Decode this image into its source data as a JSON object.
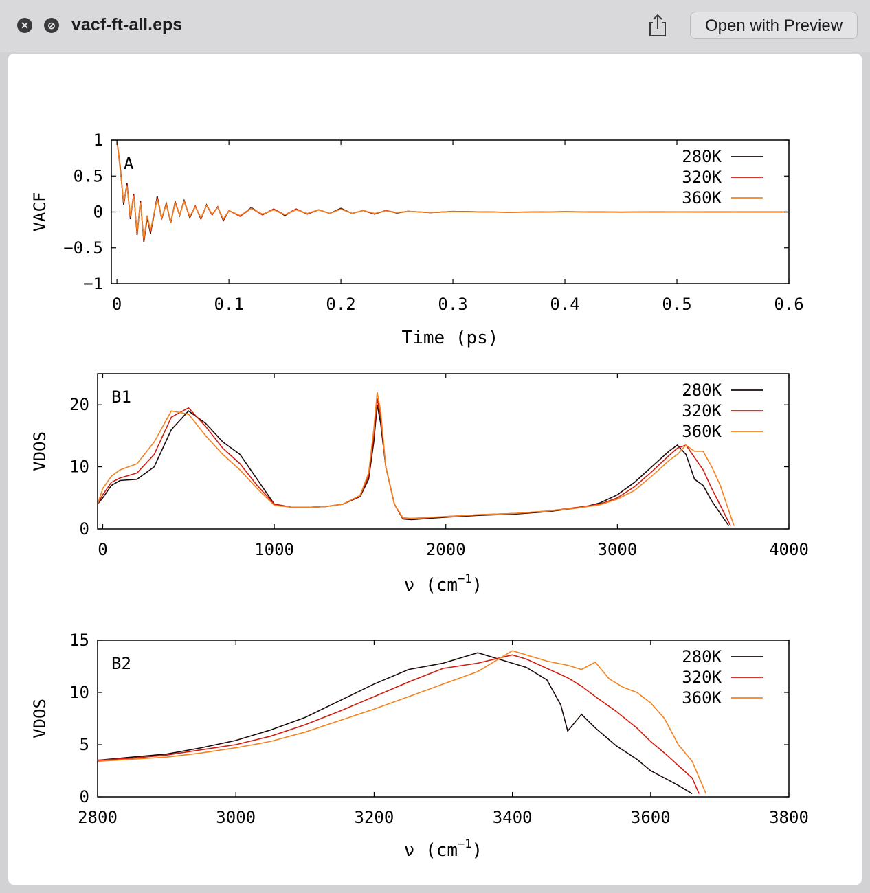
{
  "window": {
    "title": "vacf-ft-all.eps",
    "open_button": "Open with Preview",
    "share_icon": "share-icon",
    "close_icon": "close-icon",
    "minimize_icon": "fullscreen-off-icon"
  },
  "chart_data": [
    {
      "type": "line",
      "panel_label": "A",
      "xlabel": "Time (ps)",
      "ylabel": "VACF",
      "xlim": [
        -0.005,
        0.6
      ],
      "ylim": [
        -1,
        1
      ],
      "xticks": [
        0,
        0.1,
        0.2,
        0.3,
        0.4,
        0.5,
        0.6
      ],
      "xtick_labels": [
        "0",
        "0.1",
        "0.2",
        "0.3",
        "0.4",
        "0.5",
        "0.6"
      ],
      "yticks": [
        1,
        0.5,
        0,
        -0.5,
        -1
      ],
      "ytick_labels": [
        "1",
        "0.5",
        "0",
        "−0.5",
        "−1"
      ],
      "legend": "top-right",
      "series": [
        {
          "name": "280K",
          "color": "#1a0a08",
          "x": [
            0,
            0.003,
            0.006,
            0.009,
            0.012,
            0.015,
            0.018,
            0.021,
            0.024,
            0.027,
            0.03,
            0.033,
            0.036,
            0.04,
            0.044,
            0.048,
            0.052,
            0.056,
            0.06,
            0.065,
            0.07,
            0.075,
            0.08,
            0.085,
            0.09,
            0.095,
            0.1,
            0.11,
            0.12,
            0.13,
            0.14,
            0.15,
            0.16,
            0.17,
            0.18,
            0.19,
            0.2,
            0.21,
            0.22,
            0.23,
            0.24,
            0.25,
            0.26,
            0.28,
            0.3,
            0.35,
            0.4,
            0.45,
            0.5,
            0.55,
            0.6
          ],
          "y": [
            1,
            0.62,
            0.1,
            0.4,
            -0.1,
            0.25,
            -0.32,
            0.15,
            -0.42,
            -0.08,
            -0.3,
            -0.05,
            0.22,
            -0.1,
            0.12,
            -0.15,
            0.14,
            -0.05,
            0.16,
            -0.08,
            0.08,
            -0.1,
            0.1,
            -0.04,
            0.07,
            -0.12,
            0.02,
            -0.06,
            0.06,
            -0.04,
            0.04,
            -0.05,
            0.04,
            -0.03,
            0.03,
            -0.02,
            0.05,
            -0.02,
            0.02,
            -0.03,
            0.02,
            -0.015,
            0.01,
            -0.01,
            0.008,
            -0.005,
            0.004,
            -0.003,
            0.002,
            -0.001,
            0
          ]
        },
        {
          "name": "320K",
          "color": "#d21a0e",
          "x": [
            0,
            0.003,
            0.006,
            0.009,
            0.012,
            0.015,
            0.018,
            0.021,
            0.024,
            0.027,
            0.03,
            0.033,
            0.036,
            0.04,
            0.044,
            0.048,
            0.052,
            0.056,
            0.06,
            0.065,
            0.07,
            0.075,
            0.08,
            0.085,
            0.09,
            0.095,
            0.1,
            0.11,
            0.12,
            0.13,
            0.14,
            0.15,
            0.16,
            0.17,
            0.18,
            0.19,
            0.2,
            0.21,
            0.22,
            0.23,
            0.24,
            0.25,
            0.26,
            0.28,
            0.3,
            0.35,
            0.4,
            0.45,
            0.5,
            0.55,
            0.6
          ],
          "y": [
            1,
            0.6,
            0.12,
            0.38,
            -0.08,
            0.24,
            -0.3,
            0.14,
            -0.4,
            -0.06,
            -0.28,
            -0.04,
            0.2,
            -0.09,
            0.11,
            -0.14,
            0.13,
            -0.04,
            0.15,
            -0.07,
            0.08,
            -0.09,
            0.09,
            -0.04,
            0.07,
            -0.11,
            0.02,
            -0.06,
            0.05,
            -0.04,
            0.04,
            -0.04,
            0.04,
            -0.03,
            0.03,
            -0.02,
            0.04,
            -0.02,
            0.02,
            -0.03,
            0.02,
            -0.01,
            0.01,
            -0.01,
            0.007,
            -0.004,
            0.003,
            -0.002,
            0.002,
            -0.001,
            0
          ]
        },
        {
          "name": "360K",
          "color": "#f5821e",
          "x": [
            0,
            0.003,
            0.006,
            0.009,
            0.012,
            0.015,
            0.018,
            0.021,
            0.024,
            0.027,
            0.03,
            0.033,
            0.036,
            0.04,
            0.044,
            0.048,
            0.052,
            0.056,
            0.06,
            0.065,
            0.07,
            0.075,
            0.08,
            0.085,
            0.09,
            0.095,
            0.1,
            0.11,
            0.12,
            0.13,
            0.14,
            0.15,
            0.16,
            0.17,
            0.18,
            0.19,
            0.2,
            0.21,
            0.22,
            0.23,
            0.24,
            0.25,
            0.26,
            0.28,
            0.3,
            0.35,
            0.4,
            0.45,
            0.5,
            0.55,
            0.6
          ],
          "y": [
            1,
            0.58,
            0.14,
            0.36,
            -0.06,
            0.22,
            -0.28,
            0.12,
            -0.38,
            -0.05,
            -0.26,
            -0.03,
            0.18,
            -0.08,
            0.1,
            -0.13,
            0.12,
            -0.04,
            0.14,
            -0.06,
            0.07,
            -0.08,
            0.09,
            -0.03,
            0.06,
            -0.1,
            0.02,
            -0.05,
            0.05,
            -0.03,
            0.03,
            -0.04,
            0.03,
            -0.02,
            0.03,
            -0.02,
            0.04,
            -0.02,
            0.02,
            -0.02,
            0.015,
            -0.01,
            0.01,
            -0.008,
            0.006,
            -0.004,
            0.003,
            -0.002,
            0.001,
            -0.001,
            0
          ]
        }
      ]
    },
    {
      "type": "line",
      "panel_label": "B1",
      "xlabel": "ν (cm",
      "xlabel_sup": "−1",
      "xlabel_end": ")",
      "ylabel": "VDOS",
      "xlim": [
        -30,
        4000
      ],
      "ylim": [
        0,
        25
      ],
      "xticks": [
        0,
        1000,
        2000,
        3000,
        4000
      ],
      "xtick_labels": [
        "0",
        "1000",
        "2000",
        "3000",
        "4000"
      ],
      "yticks": [
        0,
        10,
        20
      ],
      "ytick_labels": [
        "0",
        "10",
        "20"
      ],
      "legend": "top-right",
      "series": [
        {
          "name": "280K",
          "color": "#1a0a08",
          "x": [
            -30,
            0,
            50,
            100,
            200,
            300,
            400,
            500,
            600,
            700,
            800,
            900,
            1000,
            1100,
            1200,
            1300,
            1400,
            1500,
            1550,
            1580,
            1600,
            1620,
            1650,
            1700,
            1750,
            1800,
            2000,
            2200,
            2400,
            2600,
            2800,
            2900,
            3000,
            3100,
            3200,
            3300,
            3350,
            3400,
            3450,
            3500,
            3550,
            3600,
            3650
          ],
          "y": [
            4,
            5,
            7,
            7.8,
            8,
            10,
            16,
            19,
            17,
            14,
            12,
            8,
            4,
            3.5,
            3.5,
            3.6,
            4,
            5.2,
            8,
            14,
            20,
            17,
            10,
            4,
            1.6,
            1.5,
            1.9,
            2.2,
            2.4,
            2.8,
            3.5,
            4.2,
            5.5,
            7.5,
            10,
            12.5,
            13.5,
            12,
            8,
            7,
            4.5,
            2.5,
            0.5
          ]
        },
        {
          "name": "320K",
          "color": "#d21a0e",
          "x": [
            -30,
            0,
            50,
            100,
            200,
            300,
            400,
            500,
            600,
            700,
            800,
            900,
            1000,
            1100,
            1200,
            1300,
            1400,
            1500,
            1550,
            1580,
            1600,
            1620,
            1650,
            1700,
            1750,
            1800,
            2000,
            2200,
            2400,
            2600,
            2800,
            2900,
            3000,
            3100,
            3200,
            3300,
            3350,
            3400,
            3450,
            3500,
            3550,
            3600,
            3660
          ],
          "y": [
            4,
            5.5,
            7.5,
            8.2,
            9,
            12,
            18,
            19.5,
            16.5,
            13,
            10.5,
            7,
            4,
            3.5,
            3.5,
            3.6,
            4,
            5.3,
            8.5,
            15,
            21,
            18,
            10,
            4,
            1.7,
            1.6,
            2,
            2.3,
            2.5,
            2.9,
            3.6,
            4,
            5,
            6.8,
            9.2,
            11.8,
            13,
            13.5,
            11.5,
            9.5,
            6.5,
            3.8,
            0.5
          ]
        },
        {
          "name": "360K",
          "color": "#f5821e",
          "x": [
            -30,
            0,
            50,
            100,
            200,
            300,
            400,
            500,
            600,
            700,
            800,
            900,
            1000,
            1100,
            1200,
            1300,
            1400,
            1500,
            1550,
            1580,
            1600,
            1620,
            1650,
            1700,
            1750,
            1800,
            2000,
            2200,
            2400,
            2600,
            2800,
            2900,
            3000,
            3100,
            3200,
            3300,
            3350,
            3400,
            3450,
            3500,
            3550,
            3600,
            3680
          ],
          "y": [
            4,
            6.5,
            8.5,
            9.5,
            10.5,
            14,
            19,
            18.5,
            15,
            12,
            9.5,
            6.5,
            3.8,
            3.5,
            3.5,
            3.6,
            4,
            5.4,
            9,
            16,
            22,
            19,
            10,
            4,
            1.8,
            1.7,
            2,
            2.3,
            2.5,
            2.9,
            3.5,
            3.9,
            4.8,
            6.2,
            8.5,
            11,
            12,
            13.5,
            12.5,
            12.5,
            10,
            7,
            0.5
          ]
        }
      ]
    },
    {
      "type": "line",
      "panel_label": "B2",
      "xlabel": "ν (cm",
      "xlabel_sup": "−1",
      "xlabel_end": ")",
      "ylabel": "VDOS",
      "xlim": [
        2800,
        3800
      ],
      "ylim": [
        0,
        15
      ],
      "xticks": [
        2800,
        3000,
        3200,
        3400,
        3600,
        3800
      ],
      "xtick_labels": [
        "2800",
        "3000",
        "3200",
        "3400",
        "3600",
        "3800"
      ],
      "yticks": [
        0,
        5,
        10,
        15
      ],
      "ytick_labels": [
        "0",
        "5",
        "10",
        "15"
      ],
      "legend": "top-right",
      "series": [
        {
          "name": "280K",
          "color": "#1a0a08",
          "x": [
            2800,
            2850,
            2900,
            2950,
            3000,
            3050,
            3100,
            3150,
            3200,
            3250,
            3300,
            3350,
            3380,
            3420,
            3450,
            3470,
            3480,
            3500,
            3520,
            3550,
            3580,
            3600,
            3620,
            3640,
            3660
          ],
          "y": [
            3.5,
            3.8,
            4.1,
            4.7,
            5.4,
            6.4,
            7.6,
            9.2,
            10.8,
            12.2,
            12.8,
            13.8,
            13.2,
            12.4,
            11.2,
            8.8,
            6.3,
            7.9,
            6.6,
            4.9,
            3.6,
            2.5,
            1.8,
            1.1,
            0.3
          ]
        },
        {
          "name": "320K",
          "color": "#d21a0e",
          "x": [
            2800,
            2850,
            2900,
            2950,
            3000,
            3050,
            3100,
            3150,
            3200,
            3250,
            3300,
            3350,
            3400,
            3420,
            3450,
            3480,
            3500,
            3520,
            3550,
            3580,
            3600,
            3620,
            3640,
            3660,
            3670
          ],
          "y": [
            3.5,
            3.7,
            4.0,
            4.5,
            5.0,
            5.8,
            6.9,
            8.2,
            9.6,
            11.0,
            12.3,
            12.8,
            13.6,
            13.2,
            12.3,
            11.4,
            10.6,
            9.6,
            8.2,
            6.6,
            5.3,
            4.2,
            3.0,
            1.8,
            0.3
          ]
        },
        {
          "name": "360K",
          "color": "#f5821e",
          "x": [
            2800,
            2850,
            2900,
            2950,
            3000,
            3050,
            3100,
            3150,
            3200,
            3250,
            3300,
            3350,
            3400,
            3450,
            3480,
            3500,
            3520,
            3540,
            3560,
            3580,
            3600,
            3620,
            3640,
            3660,
            3680
          ],
          "y": [
            3.4,
            3.6,
            3.8,
            4.2,
            4.7,
            5.3,
            6.2,
            7.3,
            8.4,
            9.6,
            10.8,
            12.0,
            14.0,
            13.0,
            12.6,
            12.2,
            12.9,
            11.3,
            10.5,
            10.0,
            9.0,
            7.5,
            5.0,
            3.4,
            0.3
          ]
        }
      ]
    }
  ]
}
